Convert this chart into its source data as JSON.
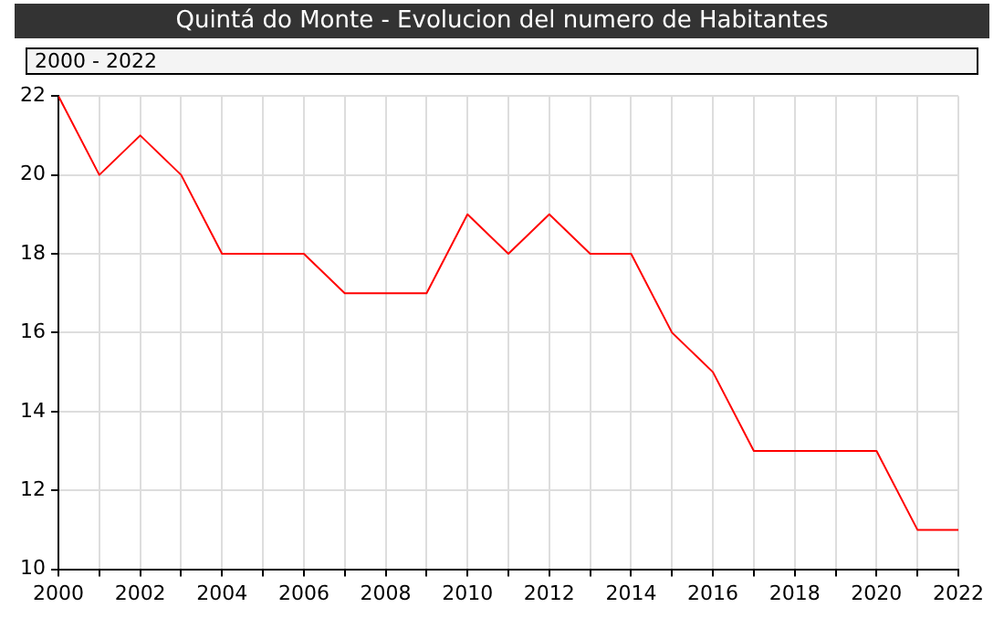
{
  "chart_data": {
    "type": "line",
    "title": "Quintá do Monte - Evolucion del numero de Habitantes",
    "annotations": [
      "2000 - 2022"
    ],
    "x": [
      2000,
      2001,
      2002,
      2003,
      2004,
      2005,
      2006,
      2007,
      2008,
      2009,
      2010,
      2011,
      2012,
      2013,
      2014,
      2015,
      2016,
      2017,
      2018,
      2019,
      2020,
      2021,
      2022
    ],
    "series": [
      {
        "color": "#ff0000",
        "values": [
          22,
          20,
          21,
          20,
          18,
          18,
          18,
          17,
          17,
          17,
          19,
          18,
          19,
          18,
          18,
          16,
          15,
          13,
          13,
          13,
          13,
          11,
          11
        ]
      }
    ],
    "xlim": [
      2000,
      2022
    ],
    "xticks": [
      2000,
      {
        "value": 2001,
        "label": null
      },
      2002,
      {
        "value": 2003,
        "label": null
      },
      2004,
      {
        "value": 2005,
        "label": null
      },
      2006,
      {
        "value": 2007,
        "label": null
      },
      2008,
      {
        "value": 2009,
        "label": null
      },
      2010,
      {
        "value": 2011,
        "label": null
      },
      2012,
      {
        "value": 2013,
        "label": null
      },
      2014,
      {
        "value": 2015,
        "label": null
      },
      2016,
      {
        "value": 2017,
        "label": null
      },
      2018,
      {
        "value": 2019,
        "label": null
      },
      2020,
      {
        "value": 2021,
        "label": null
      },
      2022
    ],
    "ylim": [
      10,
      22
    ],
    "yticks": [
      10,
      12,
      14,
      16,
      18,
      20,
      22
    ],
    "grid": true,
    "legend": false,
    "marker": "none",
    "line_style": "solid"
  }
}
